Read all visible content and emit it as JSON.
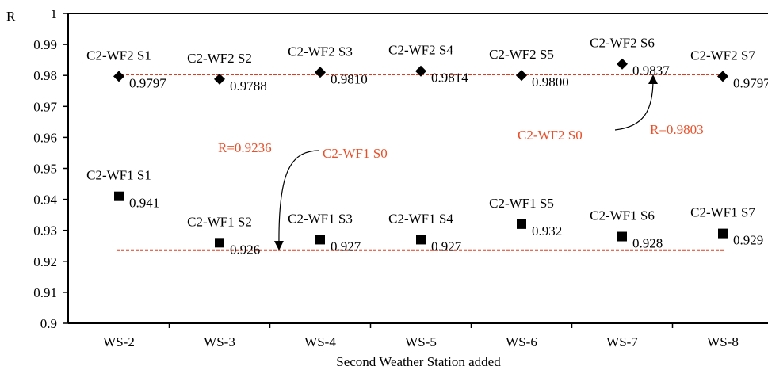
{
  "chart_data": {
    "type": "scatter",
    "title": "",
    "xlabel": "Second Weather Station added",
    "ylabel": "R",
    "categories": [
      "WS-2",
      "WS-3",
      "WS-4",
      "WS-5",
      "WS-6",
      "WS-7",
      "WS-8"
    ],
    "ylim": [
      0.9,
      1.0
    ],
    "yticks": [
      "0.9",
      "0.91",
      "0.92",
      "0.93",
      "0.94",
      "0.95",
      "0.96",
      "0.97",
      "0.98",
      "0.99",
      "1"
    ],
    "grid": false,
    "series": [
      {
        "marker": "diamond",
        "color": "#000000",
        "values": [
          0.9797,
          0.9788,
          0.981,
          0.9814,
          0.98,
          0.9837,
          0.9797
        ],
        "point_labels": [
          "C2-WF2 S1",
          "C2-WF2 S2",
          "C2-WF2 S3",
          "C2-WF2 S4",
          "C2-WF2 S5",
          "C2-WF2 S6",
          "C2-WF2 S7"
        ],
        "value_labels": [
          "0.9797",
          "0.9788",
          "0.9810",
          "0.9814",
          "0.9800",
          "0.9837",
          "0.9797"
        ]
      },
      {
        "marker": "square",
        "color": "#000000",
        "values": [
          0.941,
          0.926,
          0.927,
          0.927,
          0.932,
          0.928,
          0.929
        ],
        "point_labels": [
          "C2-WF1 S1",
          "C2-WF1 S2",
          "C2-WF1 S3",
          "C2-WF1 S4",
          "C2-WF1 S5",
          "C2-WF1 S6",
          "C2-WF1 S7"
        ],
        "value_labels": [
          "0.941",
          "0.926",
          "0.927",
          "0.927",
          "0.932",
          "0.928",
          "0.929"
        ]
      }
    ],
    "reference_lines": [
      {
        "value": 0.9803,
        "color": "#e03c1f",
        "style": "dashed"
      },
      {
        "value": 0.9236,
        "color": "#e03c1f",
        "style": "dashed"
      }
    ],
    "annotations": [
      {
        "name": "C2-WF2 S0",
        "name_text": "C2-WF2 S0",
        "r_text": "R=0.9803",
        "color": "#e8502a"
      },
      {
        "name": "C2-WF1 S0",
        "name_text": "C2-WF1 S0",
        "r_text": "R=0.9236",
        "color": "#e8502a"
      }
    ]
  }
}
